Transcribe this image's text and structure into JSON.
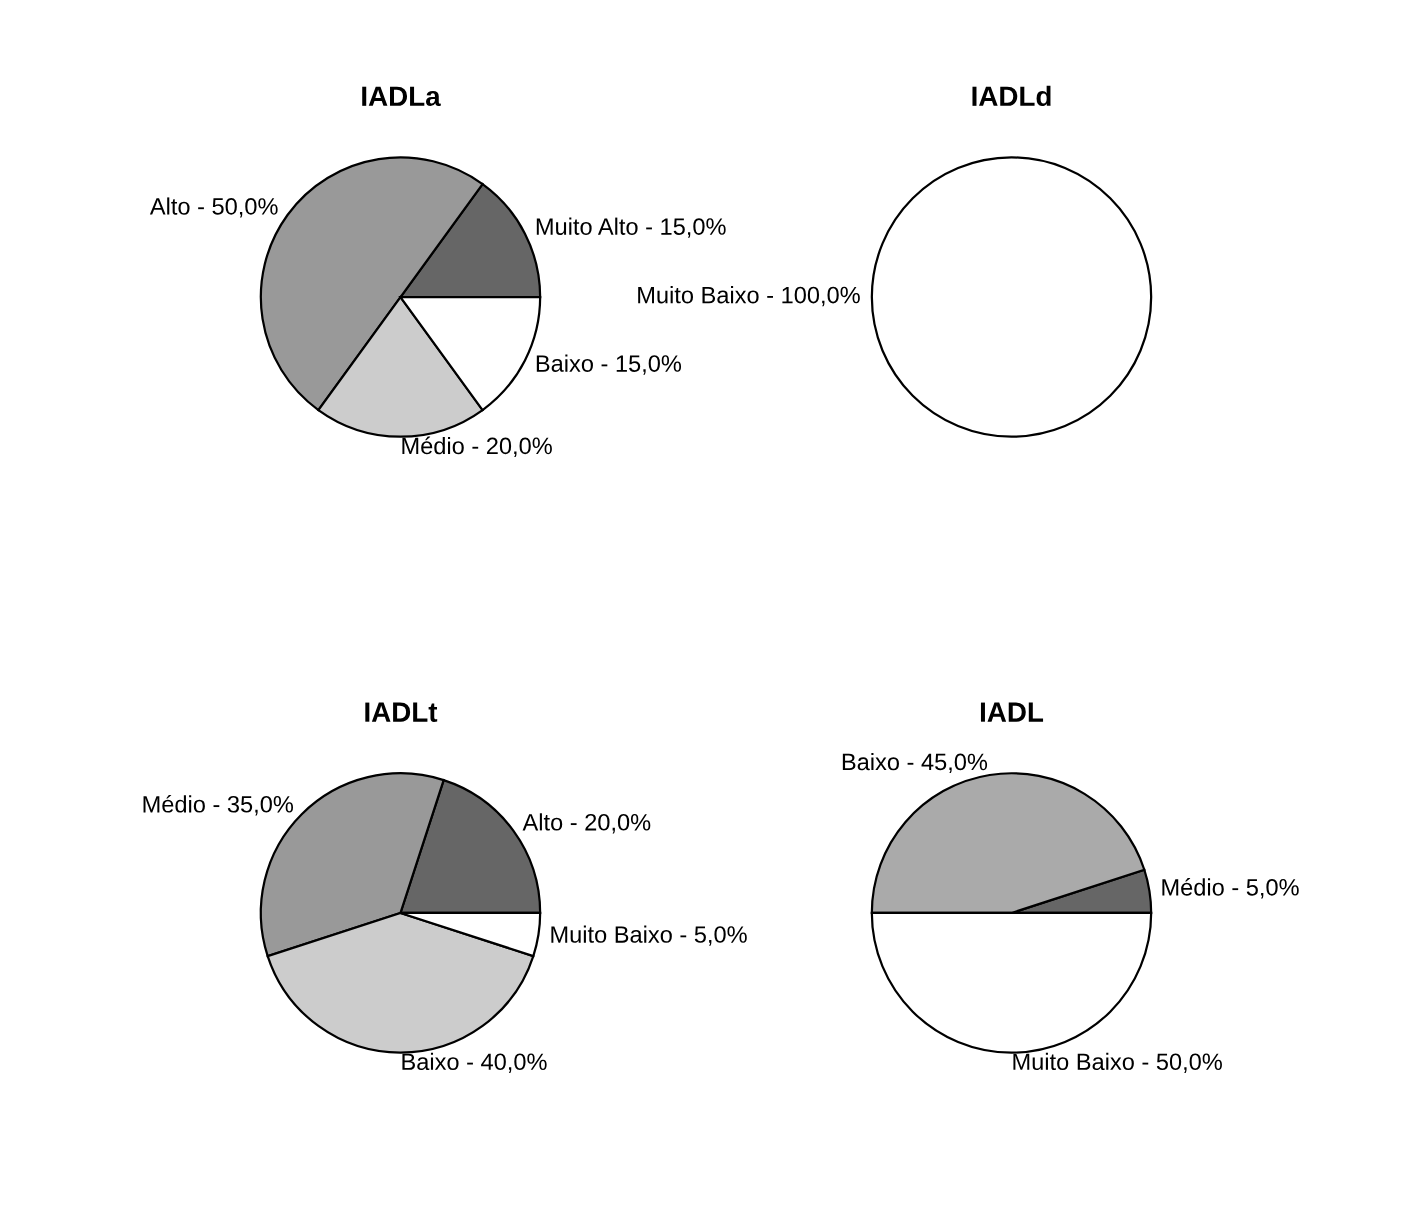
{
  "chart_data": [
    {
      "type": "pie",
      "title": "IADLa",
      "categories": [
        "Muito Alto",
        "Alto",
        "Médio",
        "Baixo"
      ],
      "values": [
        15,
        50,
        20,
        15
      ],
      "value_labels": [
        "15,0%",
        "50,0%",
        "20,0%",
        "15,0%"
      ],
      "colors": [
        "#666666",
        "#999999",
        "#cccccc",
        "#ffffff"
      ]
    },
    {
      "type": "pie",
      "title": "IADLd",
      "categories": [
        "Muito Baixo"
      ],
      "values": [
        100
      ],
      "value_labels": [
        "100,0%"
      ],
      "colors": [
        "#ffffff"
      ]
    },
    {
      "type": "pie",
      "title": "IADLt",
      "categories": [
        "Alto",
        "Médio",
        "Baixo",
        "Muito Baixo"
      ],
      "values": [
        20,
        35,
        40,
        5
      ],
      "value_labels": [
        "20,0%",
        "35,0%",
        "40,0%",
        "5,0%"
      ],
      "colors": [
        "#666666",
        "#999999",
        "#cccccc",
        "#ffffff"
      ]
    },
    {
      "type": "pie",
      "title": "IADL",
      "categories": [
        "Médio",
        "Baixo",
        "Muito Baixo"
      ],
      "values": [
        5,
        45,
        50
      ],
      "value_labels": [
        "5,0%",
        "45,0%",
        "50,0%"
      ],
      "colors": [
        "#666666",
        "#aaaaaa",
        "#ffffff"
      ]
    }
  ]
}
